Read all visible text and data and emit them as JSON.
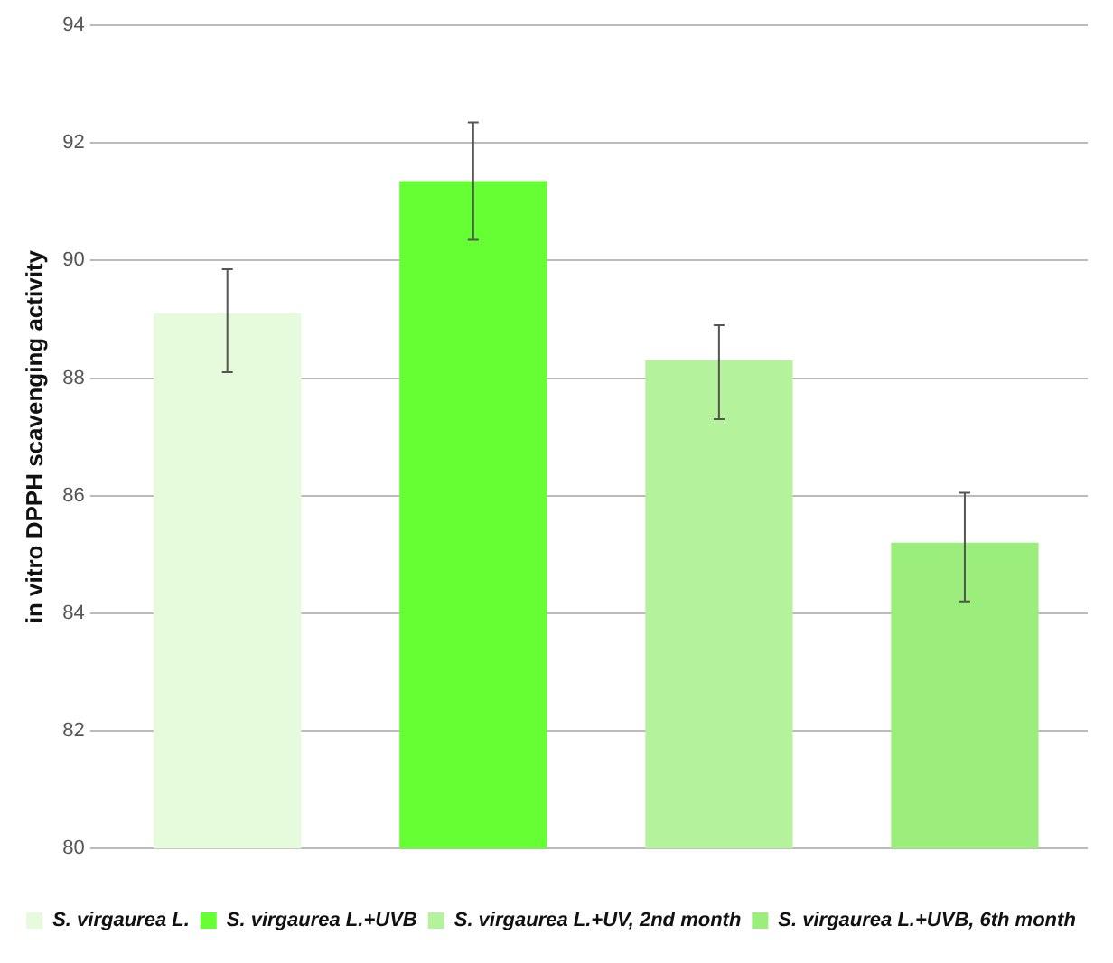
{
  "chart_data": {
    "type": "bar",
    "ylabel": "in vitro DPPH scavenging activity",
    "categories": [
      null
    ],
    "series": [
      {
        "name": "S. virgaurea L.",
        "color": "#e6fadc",
        "values": [
          89.1
        ],
        "errors": [
          [
            88.1,
            89.85
          ]
        ]
      },
      {
        "name": "S. virgaurea L.+UVB",
        "color": "#66ff33",
        "values": [
          91.35
        ],
        "errors": [
          [
            90.35,
            92.35
          ]
        ]
      },
      {
        "name": "S. virgaurea L.+UV, 2nd month",
        "color": "#b4f29c",
        "values": [
          88.3
        ],
        "errors": [
          [
            87.3,
            88.9
          ]
        ]
      },
      {
        "name": "S. virgaurea L.+UVB, 6th month",
        "color": "#9cee7c",
        "values": [
          85.2
        ],
        "errors": [
          [
            84.2,
            86.05
          ]
        ]
      }
    ],
    "ylim": [
      80,
      94
    ],
    "yticks": [
      80,
      82,
      84,
      86,
      88,
      90,
      92,
      94
    ],
    "grid": "y",
    "legend": "bottom"
  }
}
